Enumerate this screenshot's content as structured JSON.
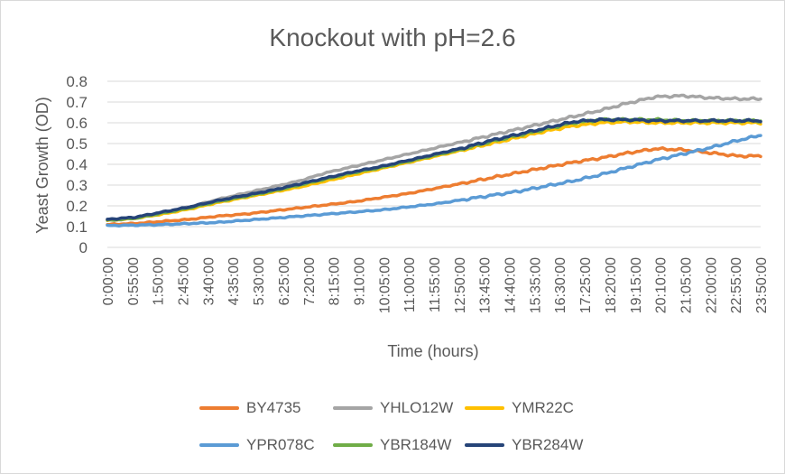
{
  "chart_data": {
    "type": "line",
    "title": "Knockout with pH=2.6",
    "xlabel": "Time (hours)",
    "ylabel": "Yeast Growth (OD)",
    "ylim": [
      0,
      0.8
    ],
    "yticks": [
      "0",
      "0.1",
      "0.2",
      "0.3",
      "0.4",
      "0.5",
      "0.6",
      "0.7",
      "0.8"
    ],
    "xticks": [
      "0:00:00",
      "0:55:00",
      "1:50:00",
      "2:45:00",
      "3:40:00",
      "4:35:00",
      "5:30:00",
      "6:25:00",
      "7:20:00",
      "8:15:00",
      "9:10:00",
      "10:05:00",
      "11:00:00",
      "11:55:00",
      "12:50:00",
      "13:45:00",
      "14:40:00",
      "15:35:00",
      "16:30:00",
      "17:25:00",
      "18:20:00",
      "19:15:00",
      "20:10:00",
      "21:05:00",
      "22:00:00",
      "22:55:00",
      "23:50:00"
    ],
    "xrange_hours": [
      0,
      23.833
    ],
    "grid": "horizontal",
    "legend_position": "bottom",
    "series": [
      {
        "name": "BY4735",
        "color": "#ED7D31",
        "x": [
          0,
          1,
          2,
          3,
          4,
          5,
          6,
          7,
          8,
          9,
          10,
          11,
          12,
          13,
          14,
          15,
          16,
          17,
          18,
          19,
          20,
          21,
          22,
          23,
          23.83
        ],
        "values": [
          0.11,
          0.115,
          0.125,
          0.135,
          0.15,
          0.16,
          0.175,
          0.19,
          0.205,
          0.22,
          0.24,
          0.26,
          0.285,
          0.31,
          0.335,
          0.36,
          0.385,
          0.41,
          0.43,
          0.455,
          0.475,
          0.47,
          0.455,
          0.44,
          0.44
        ]
      },
      {
        "name": "YHLO12W",
        "color": "#A5A5A5",
        "x": [
          0,
          1,
          2,
          3,
          4,
          5,
          6,
          7,
          8,
          9,
          10,
          11,
          12,
          13,
          14,
          15,
          16,
          17,
          18,
          19,
          20,
          21,
          22,
          23,
          23.83
        ],
        "values": [
          0.13,
          0.14,
          0.165,
          0.195,
          0.23,
          0.26,
          0.29,
          0.32,
          0.36,
          0.39,
          0.42,
          0.45,
          0.48,
          0.51,
          0.54,
          0.57,
          0.6,
          0.63,
          0.66,
          0.695,
          0.725,
          0.73,
          0.72,
          0.715,
          0.715
        ]
      },
      {
        "name": "YMR22C",
        "color": "#FFC000",
        "x": [
          0,
          1,
          2,
          3,
          4,
          5,
          6,
          7,
          8,
          9,
          10,
          11,
          12,
          13,
          14,
          15,
          16,
          17,
          18,
          19,
          20,
          21,
          22,
          23,
          23.83
        ],
        "values": [
          0.13,
          0.14,
          0.16,
          0.185,
          0.215,
          0.24,
          0.265,
          0.29,
          0.32,
          0.35,
          0.38,
          0.41,
          0.44,
          0.47,
          0.5,
          0.53,
          0.56,
          0.585,
          0.6,
          0.605,
          0.6,
          0.6,
          0.6,
          0.6,
          0.6
        ]
      },
      {
        "name": "YPR078C",
        "color": "#5B9BD5",
        "x": [
          0,
          1,
          2,
          3,
          4,
          5,
          6,
          7,
          8,
          9,
          10,
          11,
          12,
          13,
          14,
          15,
          16,
          17,
          18,
          19,
          20,
          21,
          22,
          23,
          23.83
        ],
        "values": [
          0.105,
          0.107,
          0.11,
          0.115,
          0.12,
          0.13,
          0.14,
          0.15,
          0.16,
          0.17,
          0.18,
          0.195,
          0.21,
          0.23,
          0.25,
          0.27,
          0.295,
          0.32,
          0.35,
          0.385,
          0.42,
          0.45,
          0.48,
          0.515,
          0.54
        ]
      },
      {
        "name": "YBR184W",
        "color": "#70AD47",
        "x": [
          0,
          1,
          2,
          3,
          4,
          5,
          6,
          7,
          8,
          9,
          10,
          11,
          12,
          13,
          14,
          15,
          16,
          17,
          18,
          19,
          20,
          21,
          22,
          23,
          23.83
        ],
        "values": [
          0.13,
          0.14,
          0.165,
          0.19,
          0.22,
          0.245,
          0.27,
          0.3,
          0.33,
          0.36,
          0.385,
          0.415,
          0.445,
          0.475,
          0.51,
          0.54,
          0.57,
          0.6,
          0.615,
          0.615,
          0.615,
          0.61,
          0.61,
          0.61,
          0.61
        ]
      },
      {
        "name": "YBR284W",
        "color": "#264478",
        "x": [
          0,
          1,
          2,
          3,
          4,
          5,
          6,
          7,
          8,
          9,
          10,
          11,
          12,
          13,
          14,
          15,
          16,
          17,
          18,
          19,
          20,
          21,
          22,
          23,
          23.83
        ],
        "values": [
          0.135,
          0.145,
          0.17,
          0.195,
          0.225,
          0.25,
          0.275,
          0.305,
          0.335,
          0.365,
          0.39,
          0.42,
          0.45,
          0.48,
          0.515,
          0.545,
          0.575,
          0.605,
          0.615,
          0.615,
          0.61,
          0.61,
          0.61,
          0.61,
          0.61
        ]
      }
    ]
  }
}
